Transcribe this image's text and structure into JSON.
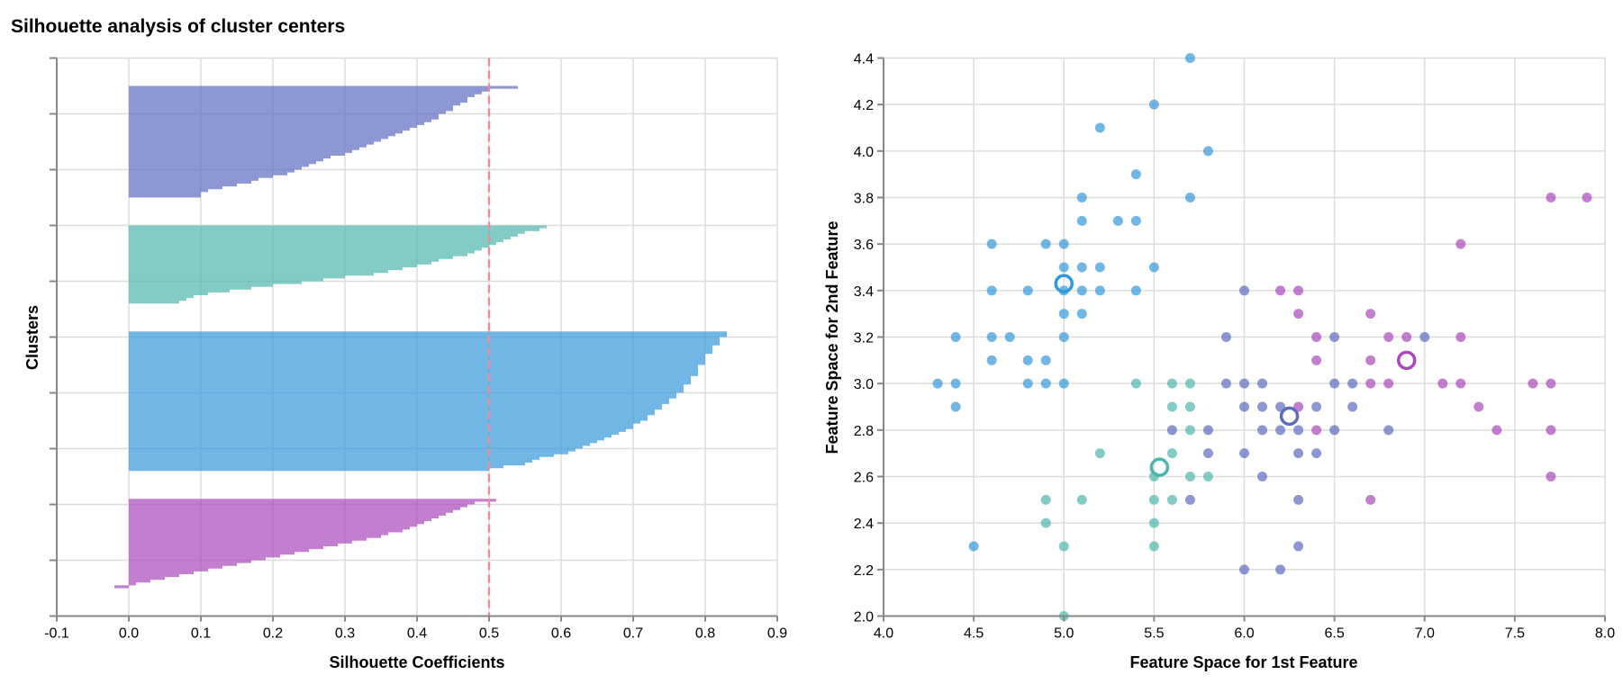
{
  "title": "Silhouette analysis of cluster centers",
  "colors": {
    "indigo": "#5c6bc0",
    "teal": "#4db6ac",
    "blue": "#3498db",
    "magenta": "#ab47bc",
    "average_line": "#f08a96"
  },
  "chart_data": [
    {
      "type": "area",
      "title": "Silhouette analysis of cluster centers",
      "xlabel": "Silhouette Coefficients",
      "ylabel": "Clusters",
      "xlim": [
        -0.1,
        0.9
      ],
      "xticks": [
        "-0.1",
        "0.0",
        "0.1",
        "0.2",
        "0.3",
        "0.4",
        "0.5",
        "0.6",
        "0.7",
        "0.8",
        "0.9"
      ],
      "grid": true,
      "average_silhouette": 0.5,
      "clusters": [
        {
          "color": "indigo",
          "values": [
            0.54,
            0.5,
            0.49,
            0.48,
            0.47,
            0.47,
            0.46,
            0.45,
            0.45,
            0.44,
            0.43,
            0.43,
            0.42,
            0.41,
            0.4,
            0.39,
            0.38,
            0.37,
            0.36,
            0.35,
            0.34,
            0.33,
            0.32,
            0.31,
            0.3,
            0.28,
            0.27,
            0.26,
            0.25,
            0.24,
            0.23,
            0.22,
            0.2,
            0.18,
            0.17,
            0.15,
            0.13,
            0.11,
            0.1,
            0.1
          ]
        },
        {
          "color": "teal",
          "values": [
            0.58,
            0.57,
            0.55,
            0.54,
            0.53,
            0.52,
            0.51,
            0.5,
            0.49,
            0.48,
            0.47,
            0.45,
            0.43,
            0.42,
            0.4,
            0.38,
            0.36,
            0.34,
            0.3,
            0.27,
            0.24,
            0.2,
            0.17,
            0.14,
            0.11,
            0.09,
            0.08,
            0.07
          ]
        },
        {
          "color": "blue",
          "values": [
            0.83,
            0.83,
            0.82,
            0.82,
            0.82,
            0.81,
            0.81,
            0.81,
            0.8,
            0.8,
            0.8,
            0.8,
            0.79,
            0.79,
            0.79,
            0.79,
            0.78,
            0.78,
            0.78,
            0.77,
            0.77,
            0.77,
            0.76,
            0.76,
            0.75,
            0.75,
            0.74,
            0.74,
            0.73,
            0.73,
            0.72,
            0.72,
            0.71,
            0.7,
            0.7,
            0.69,
            0.68,
            0.67,
            0.66,
            0.65,
            0.64,
            0.63,
            0.62,
            0.61,
            0.59,
            0.57,
            0.56,
            0.55,
            0.52,
            0.5
          ]
        },
        {
          "color": "magenta",
          "values": [
            0.51,
            0.48,
            0.47,
            0.46,
            0.45,
            0.44,
            0.43,
            0.42,
            0.41,
            0.4,
            0.39,
            0.38,
            0.36,
            0.35,
            0.33,
            0.31,
            0.29,
            0.27,
            0.25,
            0.23,
            0.21,
            0.19,
            0.17,
            0.15,
            0.13,
            0.11,
            0.09,
            0.07,
            0.05,
            0.03,
            0.01,
            -0.02
          ]
        }
      ]
    },
    {
      "type": "scatter",
      "xlabel": "Feature Space for 1st Feature",
      "ylabel": "Feature Space for 2nd Feature",
      "xlim": [
        4.0,
        8.0
      ],
      "ylim": [
        2.0,
        4.4
      ],
      "xticks": [
        "4.0",
        "4.5",
        "5.0",
        "5.5",
        "6.0",
        "6.5",
        "7.0",
        "7.5",
        "8.0"
      ],
      "yticks": [
        "2.0",
        "2.2",
        "2.4",
        "2.6",
        "2.8",
        "3.0",
        "3.2",
        "3.4",
        "3.6",
        "3.8",
        "4.0",
        "4.2",
        "4.4"
      ],
      "grid": true,
      "series": [
        {
          "color": "blue",
          "center": [
            5.0,
            3.43
          ],
          "points": [
            [
              4.3,
              3.0
            ],
            [
              4.4,
              3.0
            ],
            [
              4.4,
              2.9
            ],
            [
              4.4,
              3.2
            ],
            [
              4.5,
              2.3
            ],
            [
              4.6,
              3.6
            ],
            [
              4.6,
              3.4
            ],
            [
              4.6,
              3.2
            ],
            [
              4.6,
              3.1
            ],
            [
              4.7,
              3.2
            ],
            [
              4.8,
              3.4
            ],
            [
              4.8,
              3.1
            ],
            [
              4.8,
              3.0
            ],
            [
              4.9,
              3.6
            ],
            [
              4.9,
              3.1
            ],
            [
              4.9,
              3.0
            ],
            [
              5.0,
              3.6
            ],
            [
              5.0,
              3.5
            ],
            [
              5.0,
              3.4
            ],
            [
              5.0,
              3.3
            ],
            [
              5.0,
              3.2
            ],
            [
              5.0,
              3.0
            ],
            [
              5.1,
              3.8
            ],
            [
              5.1,
              3.7
            ],
            [
              5.1,
              3.5
            ],
            [
              5.1,
              3.4
            ],
            [
              5.1,
              3.3
            ],
            [
              5.2,
              4.1
            ],
            [
              5.2,
              3.5
            ],
            [
              5.2,
              3.4
            ],
            [
              5.3,
              3.7
            ],
            [
              5.4,
              3.9
            ],
            [
              5.4,
              3.7
            ],
            [
              5.4,
              3.4
            ],
            [
              5.5,
              4.2
            ],
            [
              5.5,
              3.5
            ],
            [
              5.7,
              4.4
            ],
            [
              5.7,
              3.8
            ],
            [
              5.8,
              4.0
            ]
          ]
        },
        {
          "color": "teal",
          "center": [
            5.53,
            2.64
          ],
          "points": [
            [
              4.9,
              2.5
            ],
            [
              4.9,
              2.4
            ],
            [
              5.0,
              2.3
            ],
            [
              5.0,
              2.0
            ],
            [
              5.1,
              2.5
            ],
            [
              5.2,
              2.7
            ],
            [
              5.4,
              3.0
            ],
            [
              5.5,
              2.6
            ],
            [
              5.5,
              2.5
            ],
            [
              5.5,
              2.4
            ],
            [
              5.5,
              2.3
            ],
            [
              5.6,
              3.0
            ],
            [
              5.6,
              2.9
            ],
            [
              5.6,
              2.7
            ],
            [
              5.6,
              2.5
            ],
            [
              5.7,
              3.0
            ],
            [
              5.7,
              2.9
            ],
            [
              5.7,
              2.8
            ],
            [
              5.7,
              2.6
            ],
            [
              5.8,
              2.6
            ]
          ]
        },
        {
          "color": "indigo",
          "center": [
            6.25,
            2.86
          ],
          "points": [
            [
              5.6,
              2.8
            ],
            [
              5.7,
              2.5
            ],
            [
              5.8,
              2.8
            ],
            [
              5.8,
              2.7
            ],
            [
              5.9,
              3.2
            ],
            [
              5.9,
              3.0
            ],
            [
              6.0,
              3.4
            ],
            [
              6.0,
              3.0
            ],
            [
              6.0,
              2.9
            ],
            [
              6.0,
              2.7
            ],
            [
              6.0,
              2.2
            ],
            [
              6.1,
              3.0
            ],
            [
              6.1,
              2.9
            ],
            [
              6.1,
              2.8
            ],
            [
              6.1,
              2.6
            ],
            [
              6.2,
              2.9
            ],
            [
              6.2,
              2.8
            ],
            [
              6.2,
              2.2
            ],
            [
              6.3,
              2.8
            ],
            [
              6.3,
              2.7
            ],
            [
              6.3,
              2.5
            ],
            [
              6.3,
              2.3
            ],
            [
              6.4,
              2.9
            ],
            [
              6.4,
              2.7
            ],
            [
              6.5,
              3.2
            ],
            [
              6.5,
              3.0
            ],
            [
              6.5,
              2.8
            ],
            [
              6.6,
              3.0
            ],
            [
              6.6,
              2.9
            ],
            [
              6.8,
              2.8
            ],
            [
              7.0,
              3.2
            ]
          ]
        },
        {
          "color": "magenta",
          "center": [
            6.9,
            3.1
          ],
          "points": [
            [
              6.2,
              3.4
            ],
            [
              6.3,
              3.4
            ],
            [
              6.3,
              3.3
            ],
            [
              6.3,
              2.9
            ],
            [
              6.4,
              3.2
            ],
            [
              6.4,
              3.1
            ],
            [
              6.4,
              2.8
            ],
            [
              6.7,
              3.3
            ],
            [
              6.7,
              3.1
            ],
            [
              6.7,
              3.0
            ],
            [
              6.7,
              2.5
            ],
            [
              6.8,
              3.2
            ],
            [
              6.8,
              3.0
            ],
            [
              6.9,
              3.2
            ],
            [
              7.1,
              3.0
            ],
            [
              7.2,
              3.6
            ],
            [
              7.2,
              3.2
            ],
            [
              7.2,
              3.0
            ],
            [
              7.3,
              2.9
            ],
            [
              7.4,
              2.8
            ],
            [
              7.6,
              3.0
            ],
            [
              7.7,
              3.8
            ],
            [
              7.7,
              3.0
            ],
            [
              7.7,
              2.8
            ],
            [
              7.7,
              2.6
            ],
            [
              7.9,
              3.8
            ]
          ]
        }
      ]
    }
  ]
}
